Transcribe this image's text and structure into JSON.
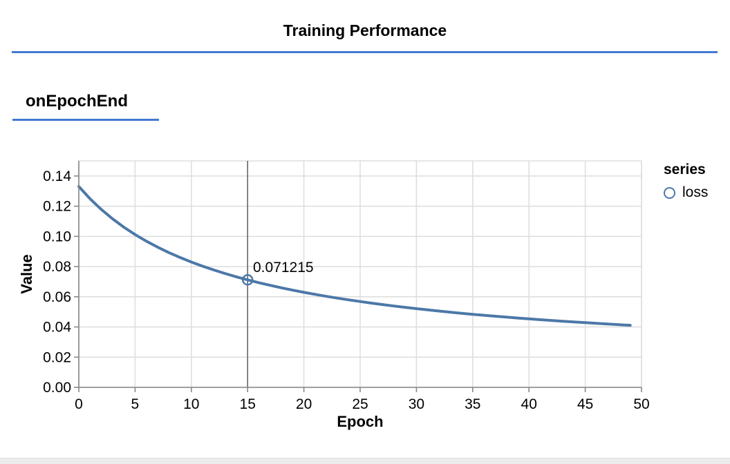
{
  "header": {
    "title": "Training Performance"
  },
  "section": {
    "heading": "onEpochEnd"
  },
  "colors": {
    "accent_blue": "#4379d2",
    "series_blue": "#4c78a8",
    "grid": "#dddddd",
    "axis": "#888888",
    "crosshair": "#666666",
    "label_text": "#000000",
    "footer_strip": "#ececec"
  },
  "chart_data": {
    "type": "line",
    "title": "",
    "xlabel": "Epoch",
    "ylabel": "Value",
    "xlim": [
      0,
      50
    ],
    "ylim": [
      0,
      0.15
    ],
    "grid": true,
    "xticks": [
      0,
      5,
      10,
      15,
      20,
      25,
      30,
      35,
      40,
      45,
      50
    ],
    "xtick_labels": [
      "0",
      "5",
      "10",
      "15",
      "20",
      "25",
      "30",
      "35",
      "40",
      "45",
      "50"
    ],
    "yticks": [
      0.0,
      0.02,
      0.04,
      0.06,
      0.08,
      0.1,
      0.12,
      0.14
    ],
    "ytick_labels": [
      "0.00",
      "0.02",
      "0.04",
      "0.06",
      "0.08",
      "0.10",
      "0.12",
      "0.14"
    ],
    "legend": {
      "title": "series",
      "position": "top-right",
      "entries": [
        {
          "label": "loss",
          "color": "#4c78a8",
          "marker": "circle-outline"
        }
      ]
    },
    "tooltip": {
      "epoch": 15,
      "value": 0.071215,
      "label": "0.071215"
    },
    "series": [
      {
        "name": "loss",
        "color": "#4c78a8",
        "x": [
          0,
          1,
          2,
          3,
          4,
          5,
          6,
          7,
          8,
          9,
          10,
          11,
          12,
          13,
          14,
          15,
          16,
          17,
          18,
          19,
          20,
          21,
          22,
          23,
          24,
          25,
          26,
          27,
          28,
          29,
          30,
          31,
          32,
          33,
          34,
          35,
          36,
          37,
          38,
          39,
          40,
          41,
          42,
          43,
          44,
          45,
          46,
          47,
          48,
          49
        ],
        "y": [
          0.133015,
          0.124889,
          0.117818,
          0.11161,
          0.106115,
          0.101217,
          0.096825,
          0.092863,
          0.089271,
          0.086,
          0.083009,
          0.080262,
          0.077732,
          0.075394,
          0.073226,
          0.071215,
          0.069333,
          0.067579,
          0.065936,
          0.064395,
          0.062946,
          0.061581,
          0.060294,
          0.059077,
          0.057925,
          0.056833,
          0.055797,
          0.054812,
          0.053874,
          0.052981,
          0.052129,
          0.051315,
          0.050537,
          0.049793,
          0.04908,
          0.048397,
          0.047741,
          0.047111,
          0.046506,
          0.045924,
          0.045363,
          0.044824,
          0.044303,
          0.043801,
          0.043317,
          0.042849,
          0.042397,
          0.04196,
          0.041537,
          0.041128
        ]
      }
    ]
  }
}
